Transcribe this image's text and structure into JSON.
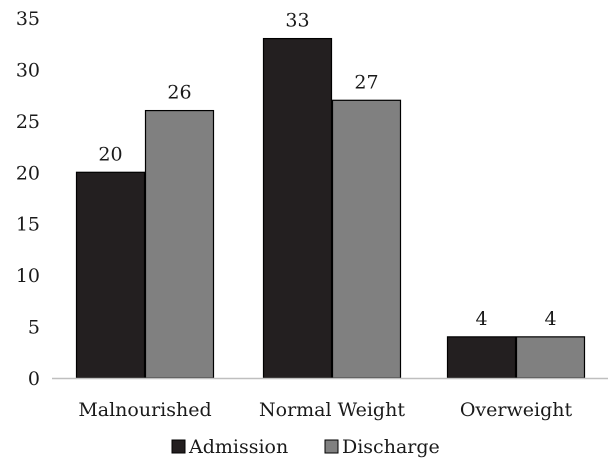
{
  "chart_data": {
    "type": "bar",
    "categories": [
      "Malnourished",
      "Normal Weight",
      "Overweight"
    ],
    "series": [
      {
        "name": "Admission",
        "values": [
          20,
          33,
          4
        ],
        "color": "#231f20"
      },
      {
        "name": "Discharge",
        "values": [
          26,
          27,
          4
        ],
        "color": "#808080"
      }
    ],
    "yticks": [
      "0",
      "5",
      "10",
      "15",
      "20",
      "25",
      "30",
      "35"
    ],
    "ylim": [
      0,
      35
    ],
    "grid": false,
    "legend": "bottom-center",
    "data_labels": true
  }
}
